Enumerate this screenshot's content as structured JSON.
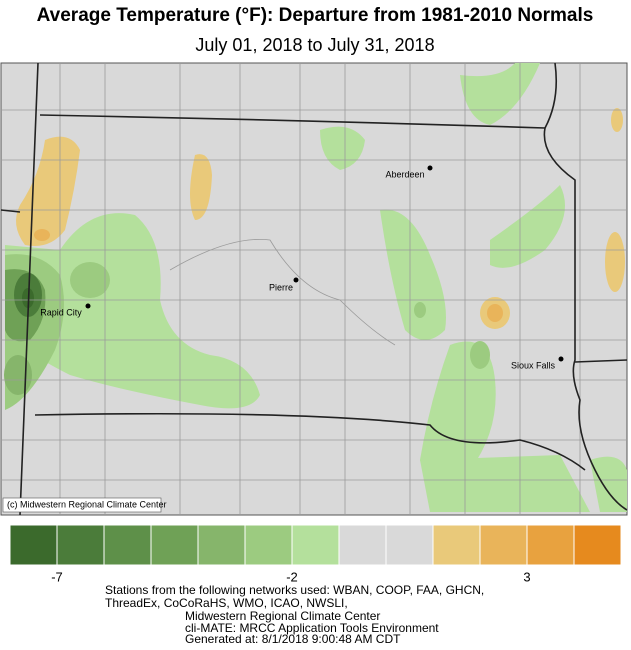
{
  "title": "Average Temperature (°F): Departure from 1981-2010 Normals",
  "subtitle": "July 01, 2018 to July 31, 2018",
  "cities": [
    "Aberdeen",
    "Pierre",
    "Rapid City",
    "Sioux Falls"
  ],
  "credit": "(c) Midwestern Regional Climate Center",
  "legend": {
    "colors": [
      "#3b6a2c",
      "#4b7c3a",
      "#5e9049",
      "#6fa156",
      "#86b56b",
      "#9ccb80",
      "#b4e09c",
      "#d9d9d9",
      "#d9d9d9",
      "#e9c97a",
      "#e9b45a",
      "#e8a23f",
      "#e68a1e"
    ],
    "lim": [
      -8,
      5
    ],
    "ticks": [
      -7,
      -2,
      3
    ]
  },
  "footer": [
    "Stations from the following networks used: WBAN, COOP, FAA, GHCN,",
    "ThreadEx, CoCoRaHS, WMO, ICAO, NWSLI,",
    "Midwestern Regional Climate Center",
    "cli-MATE: MRCC Application Tools Environment",
    "Generated at: 8/1/2018 9:00:48 AM CDT"
  ]
}
